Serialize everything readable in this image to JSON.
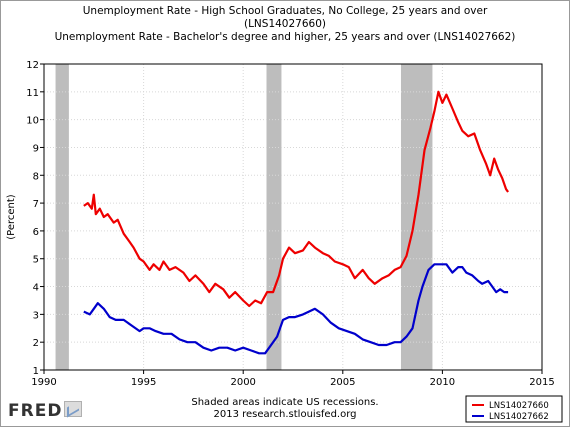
{
  "chart_data": {
    "type": "line",
    "title": [
      "Unemployment Rate - High School Graduates, No College, 25 years and over",
      "(LNS14027660)",
      "Unemployment Rate - Bachelor's degree and higher, 25 years and over (LNS14027662)"
    ],
    "ylabel": "(Percent)",
    "xlabel": "",
    "xlim": [
      1990,
      2015
    ],
    "ylim": [
      1,
      12
    ],
    "xticks": [
      1990,
      1995,
      2000,
      2005,
      2010,
      2015
    ],
    "yticks": [
      1,
      2,
      3,
      4,
      5,
      6,
      7,
      8,
      9,
      10,
      11,
      12
    ],
    "grid": true,
    "recessions": [
      [
        1990.58,
        1991.25
      ],
      [
        2001.17,
        2001.92
      ],
      [
        2007.92,
        2009.5
      ]
    ],
    "series": [
      {
        "name": "LNS14027660",
        "color": "#ee0000",
        "points": [
          [
            1992.0,
            6.9
          ],
          [
            1992.2,
            7.0
          ],
          [
            1992.4,
            6.8
          ],
          [
            1992.5,
            7.3
          ],
          [
            1992.6,
            6.6
          ],
          [
            1992.8,
            6.8
          ],
          [
            1993.0,
            6.5
          ],
          [
            1993.2,
            6.6
          ],
          [
            1993.5,
            6.3
          ],
          [
            1993.7,
            6.4
          ],
          [
            1994.0,
            5.9
          ],
          [
            1994.3,
            5.6
          ],
          [
            1994.5,
            5.4
          ],
          [
            1994.8,
            5.0
          ],
          [
            1995.0,
            4.9
          ],
          [
            1995.3,
            4.6
          ],
          [
            1995.5,
            4.8
          ],
          [
            1995.8,
            4.6
          ],
          [
            1996.0,
            4.9
          ],
          [
            1996.3,
            4.6
          ],
          [
            1996.6,
            4.7
          ],
          [
            1997.0,
            4.5
          ],
          [
            1997.3,
            4.2
          ],
          [
            1997.6,
            4.4
          ],
          [
            1998.0,
            4.1
          ],
          [
            1998.3,
            3.8
          ],
          [
            1998.6,
            4.1
          ],
          [
            1999.0,
            3.9
          ],
          [
            1999.3,
            3.6
          ],
          [
            1999.6,
            3.8
          ],
          [
            2000.0,
            3.5
          ],
          [
            2000.3,
            3.3
          ],
          [
            2000.6,
            3.5
          ],
          [
            2000.9,
            3.4
          ],
          [
            2001.2,
            3.8
          ],
          [
            2001.5,
            3.8
          ],
          [
            2001.8,
            4.4
          ],
          [
            2002.0,
            5.0
          ],
          [
            2002.3,
            5.4
          ],
          [
            2002.6,
            5.2
          ],
          [
            2003.0,
            5.3
          ],
          [
            2003.3,
            5.6
          ],
          [
            2003.6,
            5.4
          ],
          [
            2004.0,
            5.2
          ],
          [
            2004.3,
            5.1
          ],
          [
            2004.6,
            4.9
          ],
          [
            2005.0,
            4.8
          ],
          [
            2005.3,
            4.7
          ],
          [
            2005.6,
            4.3
          ],
          [
            2006.0,
            4.6
          ],
          [
            2006.3,
            4.3
          ],
          [
            2006.6,
            4.1
          ],
          [
            2007.0,
            4.3
          ],
          [
            2007.3,
            4.4
          ],
          [
            2007.6,
            4.6
          ],
          [
            2007.9,
            4.7
          ],
          [
            2008.2,
            5.1
          ],
          [
            2008.5,
            6.0
          ],
          [
            2008.8,
            7.3
          ],
          [
            2009.1,
            8.9
          ],
          [
            2009.4,
            9.7
          ],
          [
            2009.6,
            10.3
          ],
          [
            2009.8,
            11.0
          ],
          [
            2010.0,
            10.6
          ],
          [
            2010.2,
            10.9
          ],
          [
            2010.5,
            10.4
          ],
          [
            2010.8,
            9.9
          ],
          [
            2011.0,
            9.6
          ],
          [
            2011.3,
            9.4
          ],
          [
            2011.6,
            9.5
          ],
          [
            2011.9,
            8.9
          ],
          [
            2012.2,
            8.4
          ],
          [
            2012.4,
            8.0
          ],
          [
            2012.6,
            8.6
          ],
          [
            2012.8,
            8.2
          ],
          [
            2013.0,
            7.9
          ],
          [
            2013.2,
            7.5
          ],
          [
            2013.3,
            7.4
          ]
        ]
      },
      {
        "name": "LNS14027662",
        "color": "#0000cc",
        "points": [
          [
            1992.0,
            3.1
          ],
          [
            1992.3,
            3.0
          ],
          [
            1992.5,
            3.2
          ],
          [
            1992.7,
            3.4
          ],
          [
            1993.0,
            3.2
          ],
          [
            1993.3,
            2.9
          ],
          [
            1993.6,
            2.8
          ],
          [
            1994.0,
            2.8
          ],
          [
            1994.4,
            2.6
          ],
          [
            1994.8,
            2.4
          ],
          [
            1995.0,
            2.5
          ],
          [
            1995.3,
            2.5
          ],
          [
            1995.6,
            2.4
          ],
          [
            1996.0,
            2.3
          ],
          [
            1996.4,
            2.3
          ],
          [
            1996.8,
            2.1
          ],
          [
            1997.2,
            2.0
          ],
          [
            1997.6,
            2.0
          ],
          [
            1998.0,
            1.8
          ],
          [
            1998.4,
            1.7
          ],
          [
            1998.8,
            1.8
          ],
          [
            1999.2,
            1.8
          ],
          [
            1999.6,
            1.7
          ],
          [
            2000.0,
            1.8
          ],
          [
            2000.4,
            1.7
          ],
          [
            2000.8,
            1.6
          ],
          [
            2001.1,
            1.6
          ],
          [
            2001.4,
            1.9
          ],
          [
            2001.7,
            2.2
          ],
          [
            2002.0,
            2.8
          ],
          [
            2002.3,
            2.9
          ],
          [
            2002.6,
            2.9
          ],
          [
            2003.0,
            3.0
          ],
          [
            2003.3,
            3.1
          ],
          [
            2003.6,
            3.2
          ],
          [
            2004.0,
            3.0
          ],
          [
            2004.4,
            2.7
          ],
          [
            2004.8,
            2.5
          ],
          [
            2005.2,
            2.4
          ],
          [
            2005.6,
            2.3
          ],
          [
            2006.0,
            2.1
          ],
          [
            2006.4,
            2.0
          ],
          [
            2006.8,
            1.9
          ],
          [
            2007.2,
            1.9
          ],
          [
            2007.6,
            2.0
          ],
          [
            2007.9,
            2.0
          ],
          [
            2008.2,
            2.2
          ],
          [
            2008.5,
            2.5
          ],
          [
            2008.8,
            3.5
          ],
          [
            2009.0,
            4.0
          ],
          [
            2009.3,
            4.6
          ],
          [
            2009.6,
            4.8
          ],
          [
            2009.9,
            4.8
          ],
          [
            2010.2,
            4.8
          ],
          [
            2010.5,
            4.5
          ],
          [
            2010.8,
            4.7
          ],
          [
            2011.0,
            4.7
          ],
          [
            2011.2,
            4.5
          ],
          [
            2011.5,
            4.4
          ],
          [
            2011.8,
            4.2
          ],
          [
            2012.0,
            4.1
          ],
          [
            2012.3,
            4.2
          ],
          [
            2012.5,
            4.0
          ],
          [
            2012.7,
            3.8
          ],
          [
            2012.9,
            3.9
          ],
          [
            2013.1,
            3.8
          ],
          [
            2013.3,
            3.8
          ]
        ]
      }
    ],
    "footnote": [
      "Shaded areas indicate US recessions.",
      "2013 research.stlouisfed.org"
    ],
    "legend_position": "bottom-right"
  },
  "branding": {
    "logo_text": "FRED"
  }
}
